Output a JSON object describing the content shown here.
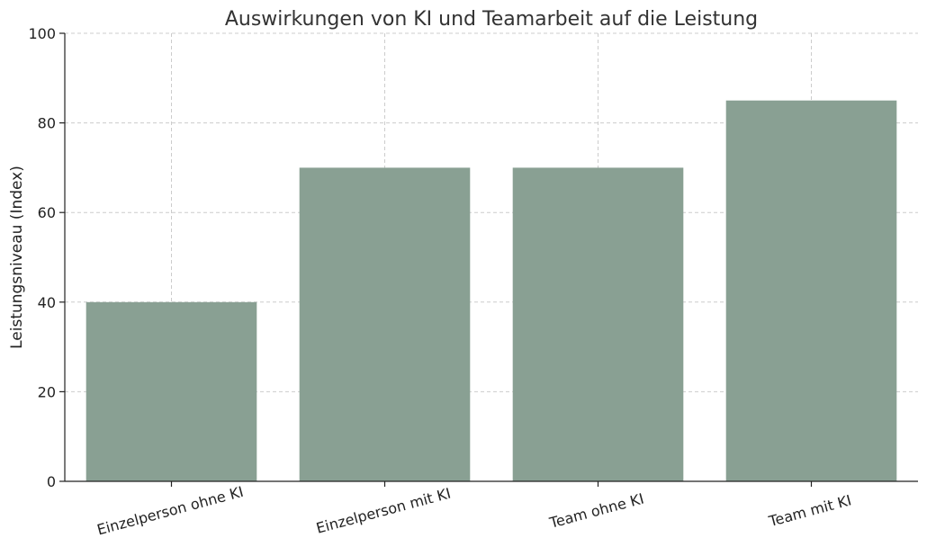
{
  "chart_data": {
    "type": "bar",
    "title": "Auswirkungen von KI und Teamarbeit auf die Leistung",
    "xlabel": "",
    "ylabel": "Leistungsniveau (Index)",
    "categories": [
      "Einzelperson ohne KI",
      "Einzelperson mit KI",
      "Team ohne KI",
      "Team mit KI"
    ],
    "values": [
      40,
      70,
      70,
      85
    ],
    "ylim": [
      0,
      100
    ],
    "yticks": [
      "0",
      "20",
      "40",
      "60",
      "80",
      "100"
    ],
    "bar_color": "#89a093",
    "grid": true,
    "category_label_rotation": "slanted"
  }
}
